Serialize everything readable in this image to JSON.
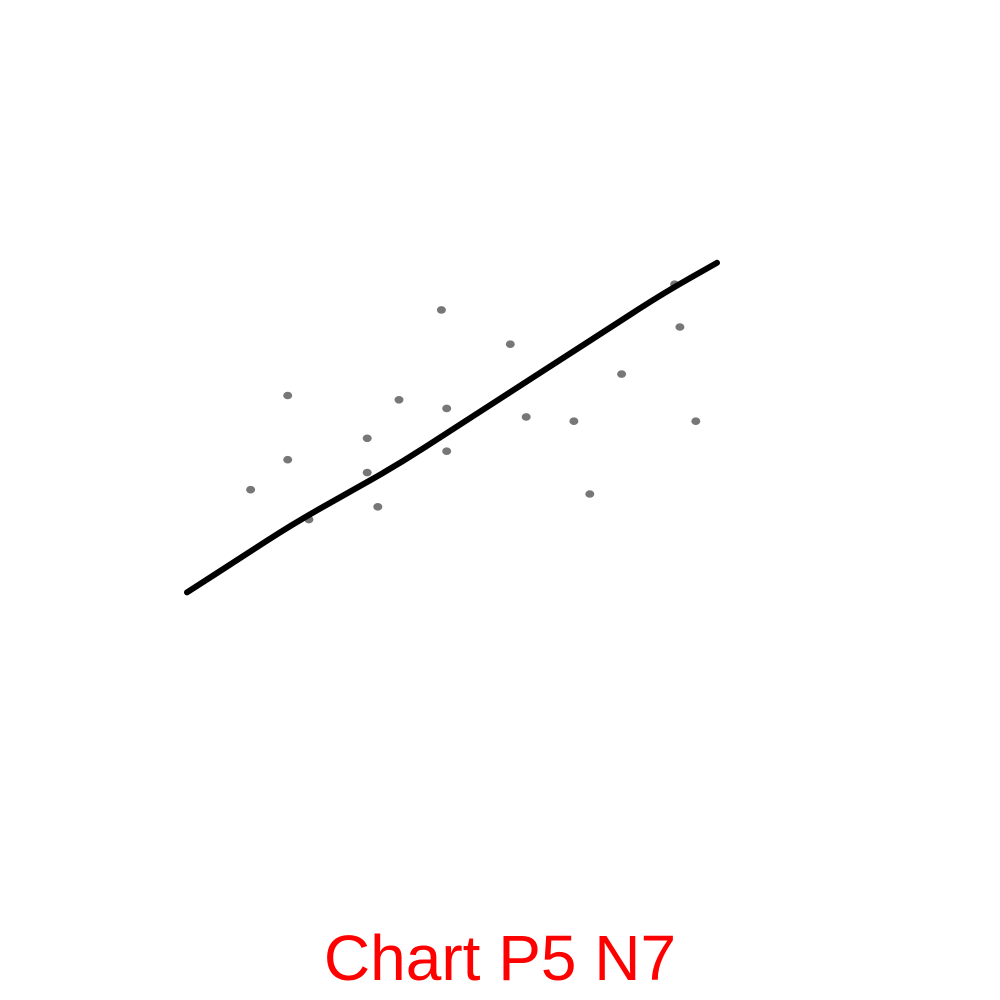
{
  "caption": "Chart P5 N7",
  "colors": {
    "points": "#777777",
    "trend_line": "#000000",
    "caption": "#ff0000",
    "background": "#ffffff"
  },
  "chart_data": {
    "type": "scatter",
    "title": "",
    "xlabel": "",
    "ylabel": "",
    "xlim": [
      0,
      10
    ],
    "ylim": [
      0,
      10
    ],
    "grid": false,
    "legend": "none",
    "series": [
      {
        "type": "scatter",
        "points": [
          {
            "x": 1.2,
            "y": 4.4
          },
          {
            "x": 1.9,
            "y": 6.6
          },
          {
            "x": 1.9,
            "y": 5.1
          },
          {
            "x": 2.3,
            "y": 3.7
          },
          {
            "x": 3.4,
            "y": 5.6
          },
          {
            "x": 3.4,
            "y": 4.8
          },
          {
            "x": 3.6,
            "y": 4.0
          },
          {
            "x": 4.0,
            "y": 6.5
          },
          {
            "x": 4.8,
            "y": 8.6
          },
          {
            "x": 4.9,
            "y": 6.3
          },
          {
            "x": 4.9,
            "y": 5.3
          },
          {
            "x": 6.1,
            "y": 7.8
          },
          {
            "x": 6.4,
            "y": 6.1
          },
          {
            "x": 7.3,
            "y": 6.0
          },
          {
            "x": 7.6,
            "y": 4.3
          },
          {
            "x": 8.2,
            "y": 7.1
          },
          {
            "x": 9.2,
            "y": 9.2
          },
          {
            "x": 9.3,
            "y": 8.2
          },
          {
            "x": 9.6,
            "y": 6.0
          }
        ]
      },
      {
        "type": "line",
        "points": [
          {
            "x": 0.0,
            "y": 2.0
          },
          {
            "x": 1.0,
            "y": 2.8
          },
          {
            "x": 2.0,
            "y": 3.6
          },
          {
            "x": 3.0,
            "y": 4.3
          },
          {
            "x": 4.0,
            "y": 5.0
          },
          {
            "x": 5.0,
            "y": 5.8
          },
          {
            "x": 6.0,
            "y": 6.6
          },
          {
            "x": 7.0,
            "y": 7.4
          },
          {
            "x": 8.0,
            "y": 8.2
          },
          {
            "x": 9.0,
            "y": 9.0
          },
          {
            "x": 10.0,
            "y": 9.7
          }
        ]
      }
    ]
  }
}
